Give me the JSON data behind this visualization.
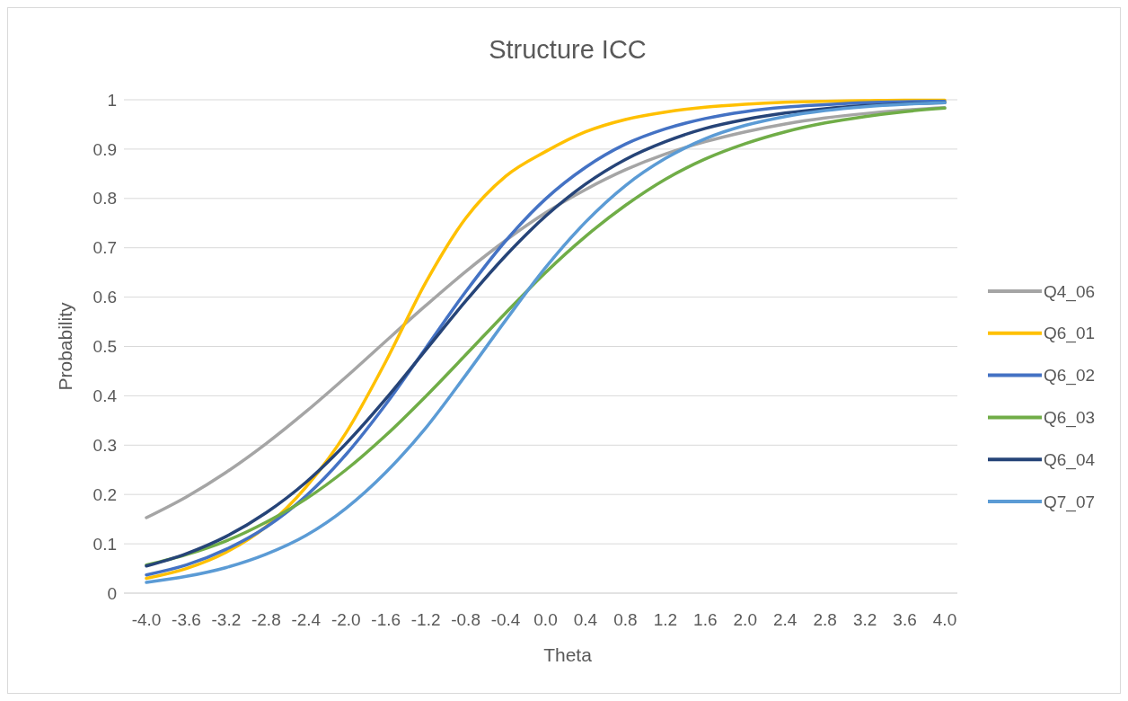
{
  "chart_data": {
    "type": "line",
    "title": "Structure ICC",
    "xlabel": "Theta",
    "ylabel": "Probability",
    "categories": [
      "-4.0",
      "-3.6",
      "-3.2",
      "-2.8",
      "-2.4",
      "-2.0",
      "-1.6",
      "-1.2",
      "-0.8",
      "-0.4",
      "0.0",
      "0.4",
      "0.8",
      "1.2",
      "1.6",
      "2.0",
      "2.4",
      "2.8",
      "3.2",
      "3.6",
      "4.0"
    ],
    "ylim": [
      0,
      1
    ],
    "yticks": [
      0,
      0.1,
      0.2,
      0.3,
      0.4,
      0.5,
      0.6,
      0.7,
      0.8,
      0.9,
      1
    ],
    "grid": "y",
    "legend": "right",
    "series": [
      {
        "name": "Q4_06",
        "color": "#a5a5a5",
        "values": [
          0.153,
          0.195,
          0.245,
          0.303,
          0.368,
          0.438,
          0.511,
          0.583,
          0.652,
          0.715,
          0.771,
          0.818,
          0.858,
          0.89,
          0.915,
          0.935,
          0.951,
          0.963,
          0.972,
          0.979,
          0.984
        ]
      },
      {
        "name": "Q6_01",
        "color": "#ffc000",
        "values": [
          0.03,
          0.05,
          0.083,
          0.135,
          0.215,
          0.325,
          0.47,
          0.63,
          0.76,
          0.845,
          0.895,
          0.935,
          0.96,
          0.975,
          0.985,
          0.991,
          0.995,
          0.997,
          0.998,
          0.999,
          0.999
        ]
      },
      {
        "name": "Q6_02",
        "color": "#4472c4",
        "values": [
          0.037,
          0.057,
          0.089,
          0.134,
          0.197,
          0.281,
          0.383,
          0.497,
          0.611,
          0.714,
          0.799,
          0.863,
          0.91,
          0.941,
          0.962,
          0.976,
          0.985,
          0.99,
          0.994,
          0.996,
          0.997
        ]
      },
      {
        "name": "Q6_03",
        "color": "#70ad47",
        "values": [
          0.057,
          0.078,
          0.106,
          0.144,
          0.191,
          0.25,
          0.32,
          0.399,
          0.483,
          0.568,
          0.65,
          0.723,
          0.786,
          0.839,
          0.88,
          0.911,
          0.935,
          0.953,
          0.966,
          0.976,
          0.983
        ]
      },
      {
        "name": "Q6_04",
        "color": "#264478",
        "values": [
          0.055,
          0.08,
          0.115,
          0.163,
          0.225,
          0.303,
          0.394,
          0.493,
          0.592,
          0.684,
          0.764,
          0.829,
          0.879,
          0.915,
          0.942,
          0.96,
          0.973,
          0.982,
          0.988,
          0.992,
          0.994
        ]
      },
      {
        "name": "Q7_07",
        "color": "#5b9bd5",
        "values": [
          0.022,
          0.034,
          0.052,
          0.079,
          0.117,
          0.172,
          0.245,
          0.335,
          0.442,
          0.553,
          0.66,
          0.752,
          0.826,
          0.881,
          0.921,
          0.948,
          0.966,
          0.978,
          0.986,
          0.991,
          0.994
        ]
      }
    ]
  }
}
